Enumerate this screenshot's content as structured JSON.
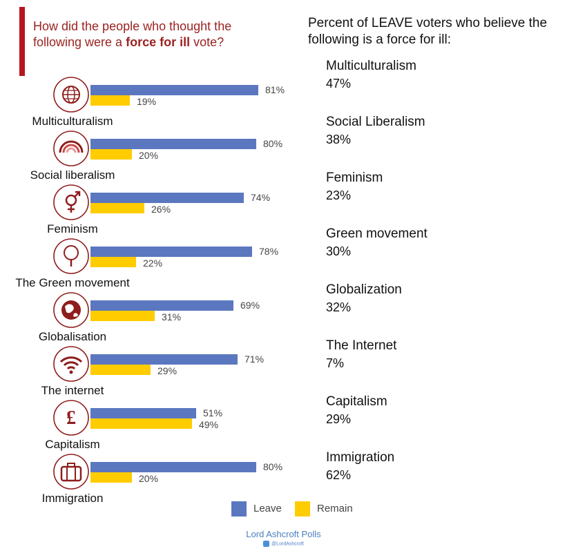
{
  "header": {
    "title_part1": "How did the people who thought the following were a ",
    "title_bold": "force for ill",
    "title_part2": " vote?",
    "accent_color": "#b5171e"
  },
  "chart_data": {
    "type": "bar",
    "categories": [
      "Multiculturalism",
      "Social liberalism",
      "Feminism",
      "The Green movement",
      "Globalisation",
      "The internet",
      "Capitalism",
      "Immigration"
    ],
    "icons": [
      "globe-icon",
      "rainbow-icon",
      "gender-symbol-icon",
      "tree-icon",
      "world-map-icon",
      "wifi-icon",
      "pound-sign-icon",
      "briefcase-icon"
    ],
    "series": [
      {
        "name": "Leave",
        "values": [
          81,
          80,
          74,
          78,
          69,
          71,
          51,
          80
        ],
        "color": "#5b77bf"
      },
      {
        "name": "Remain",
        "values": [
          19,
          20,
          26,
          22,
          31,
          29,
          49,
          20
        ],
        "color": "#ffcc00"
      }
    ],
    "ylim": [
      0,
      100
    ],
    "legend_placement": "bottom"
  },
  "right_panel": {
    "title": "Percent of LEAVE voters who believe the following is a force for ill:",
    "items": [
      {
        "label": "Multiculturalism",
        "value": "47%"
      },
      {
        "label": "Social Liberalism",
        "value": "38%"
      },
      {
        "label": "Feminism",
        "value": "23%"
      },
      {
        "label": "Green movement",
        "value": "30%"
      },
      {
        "label": "Globalization",
        "value": "32%"
      },
      {
        "label": "The Internet",
        "value": "7%"
      },
      {
        "label": "Capitalism",
        "value": "29%"
      },
      {
        "label": "Immigration",
        "value": "62%"
      }
    ]
  },
  "source": {
    "name": "Lord Ashcroft Polls",
    "twitter": "@LordAshcroft"
  }
}
